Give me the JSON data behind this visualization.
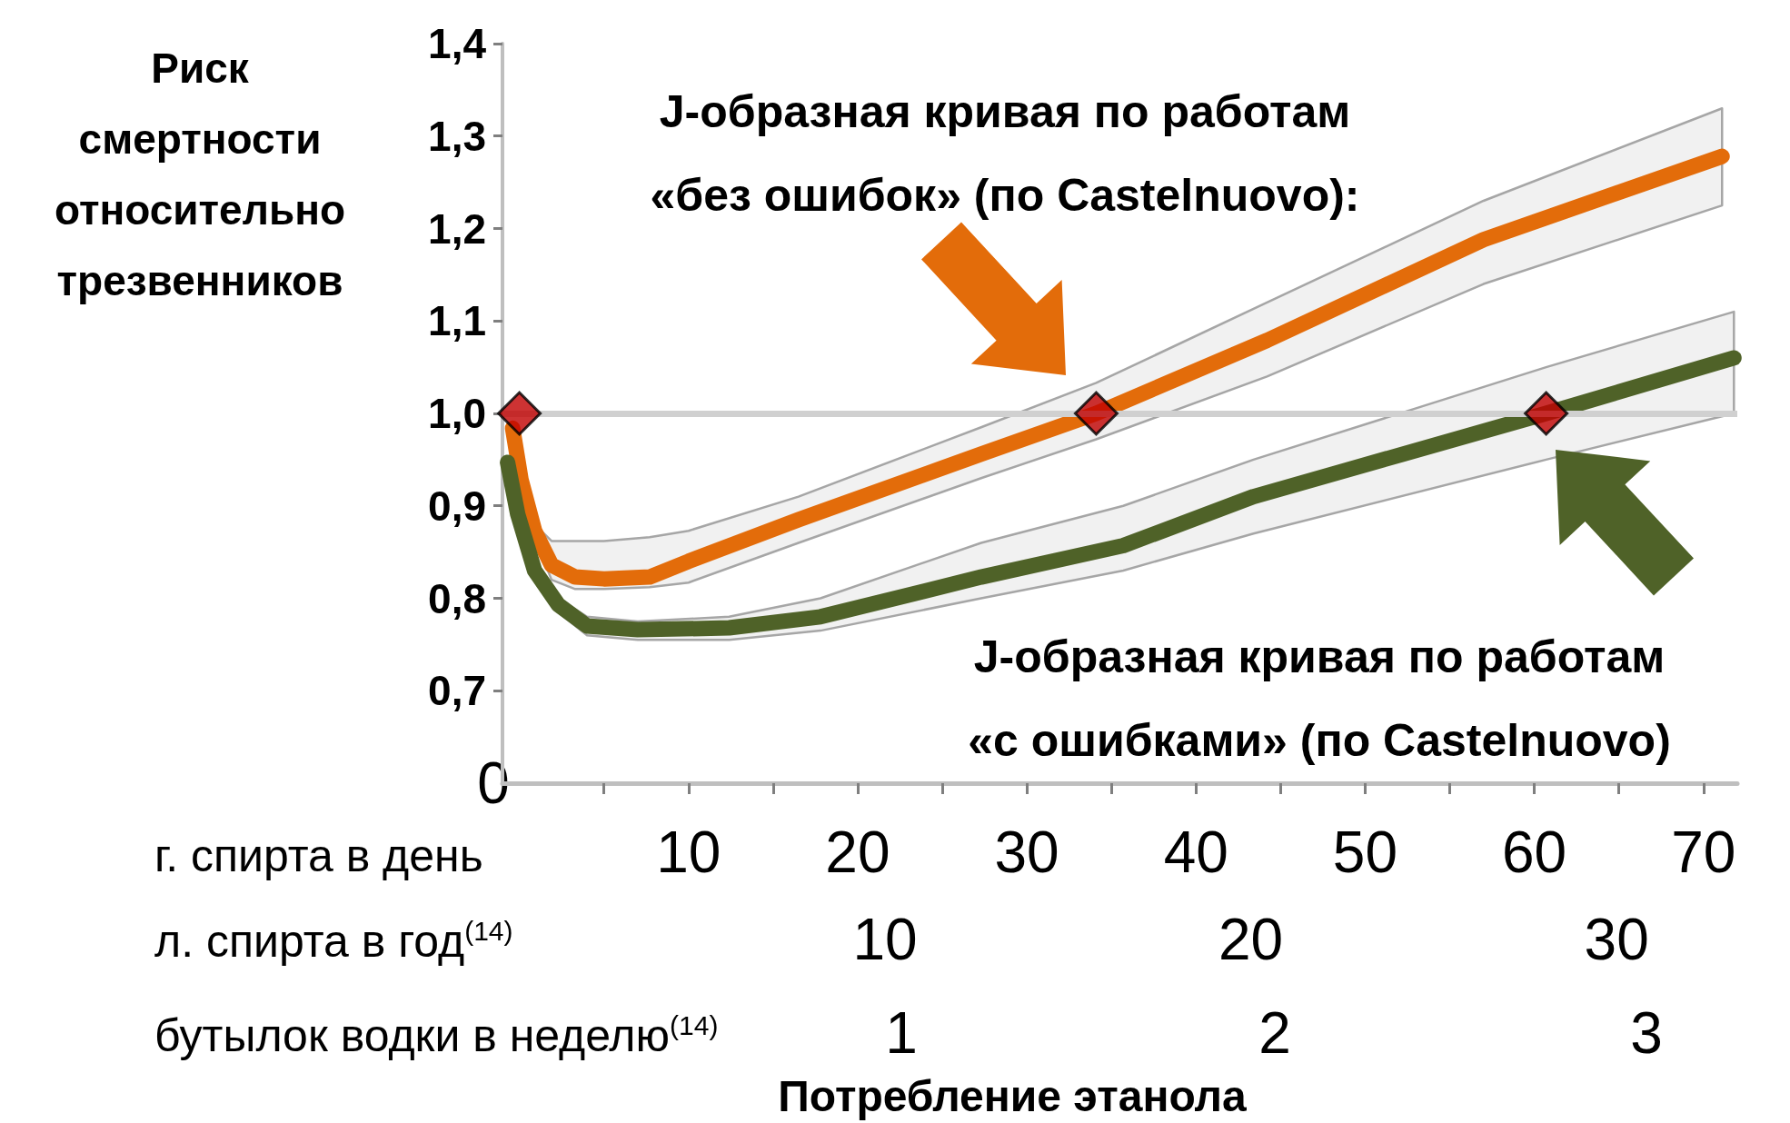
{
  "chart_data": {
    "type": "line",
    "ylabel": "Риск смертности относительно трезвенников",
    "xlabel": "г. спирта в день",
    "x2label": "л. спирта в год$^{(14)}$",
    "annotations": [
      "J-образная кривая по работам «без ошибок» (по Castelnuovo):",
      "J-образная кривая по работам «с ошибками» (по Castelnuovo)",
      "0",
      "бутылок водки в неделю$^{(14)}$",
      "1",
      "2",
      "3",
      "Потребление этанола"
    ],
    "xlim": [
      -1,
      72
    ],
    "xticks": [
      {
        "value": 5,
        "label": null
      },
      10,
      {
        "value": 15,
        "label": null
      },
      20,
      {
        "value": 25,
        "label": null
      },
      30,
      {
        "value": 35,
        "label": null
      },
      40,
      {
        "value": 45,
        "label": null
      },
      50,
      {
        "value": 55,
        "label": null
      },
      60,
      {
        "value": 65,
        "label": null
      },
      70
    ],
    "x2lim": [
      -0.46,
      33.3
    ],
    "x2ticks": [
      10,
      20,
      30
    ],
    "ylim": [
      0.6,
      1.4
    ],
    "yticks": [
      {
        "value": 0.7,
        "label": "0,7"
      },
      {
        "value": 0.8,
        "label": "0,8"
      },
      {
        "value": 0.9,
        "label": "0,9"
      },
      {
        "value": 1.0,
        "label": "1,0"
      },
      {
        "value": 1.1,
        "label": "1,1"
      },
      {
        "value": 1.2,
        "label": "1,2"
      },
      {
        "value": 1.3,
        "label": "1,3"
      },
      {
        "value": 1.4,
        "label": "1,4"
      }
    ],
    "ref_lines": [
      {
        "axis": "y",
        "value": 1.0,
        "color": "#d0d0d0"
      }
    ],
    "series": [
      {
        "color": "#e36c0a",
        "x": [
          -0.4,
          0.1,
          0.9,
          1.9,
          3.3,
          5,
          7.7,
          10,
          16.5,
          27.3,
          34.1,
          44.2,
          57,
          71.1
        ],
        "values": [
          0.984,
          0.928,
          0.873,
          0.836,
          0.823,
          0.821,
          0.823,
          0.84,
          0.885,
          0.956,
          1.0,
          1.079,
          1.188,
          1.278
        ],
        "upper": [
          0.984,
          0.93,
          0.88,
          0.862,
          0.862,
          0.862,
          0.866,
          0.873,
          0.91,
          0.985,
          1.033,
          1.12,
          1.23,
          1.33
        ],
        "lower": [
          0.984,
          0.926,
          0.866,
          0.82,
          0.81,
          0.81,
          0.812,
          0.817,
          0.86,
          0.93,
          0.972,
          1.04,
          1.14,
          1.225
        ]
      },
      {
        "color": "#4f6228",
        "x": [
          -0.7,
          -0.1,
          0.9,
          2.3,
          4,
          7,
          12.4,
          17.8,
          27.3,
          35.7,
          43.4,
          60.7,
          71.8
        ],
        "values": [
          0.947,
          0.891,
          0.83,
          0.793,
          0.77,
          0.766,
          0.768,
          0.78,
          0.823,
          0.857,
          0.91,
          1.0,
          1.06
        ],
        "upper": [
          0.947,
          0.891,
          0.835,
          0.8,
          0.78,
          0.775,
          0.78,
          0.8,
          0.86,
          0.9,
          0.95,
          1.05,
          1.11
        ],
        "lower": [
          0.947,
          0.891,
          0.825,
          0.785,
          0.76,
          0.755,
          0.755,
          0.765,
          0.8,
          0.83,
          0.87,
          0.95,
          1.0
        ]
      },
      {
        "type": "scatter",
        "marker": "diamond",
        "color": "#c00000",
        "x": [
          0,
          34.1,
          60.7
        ],
        "values": [
          1.0,
          1.0,
          1.0
        ]
      }
    ]
  }
}
